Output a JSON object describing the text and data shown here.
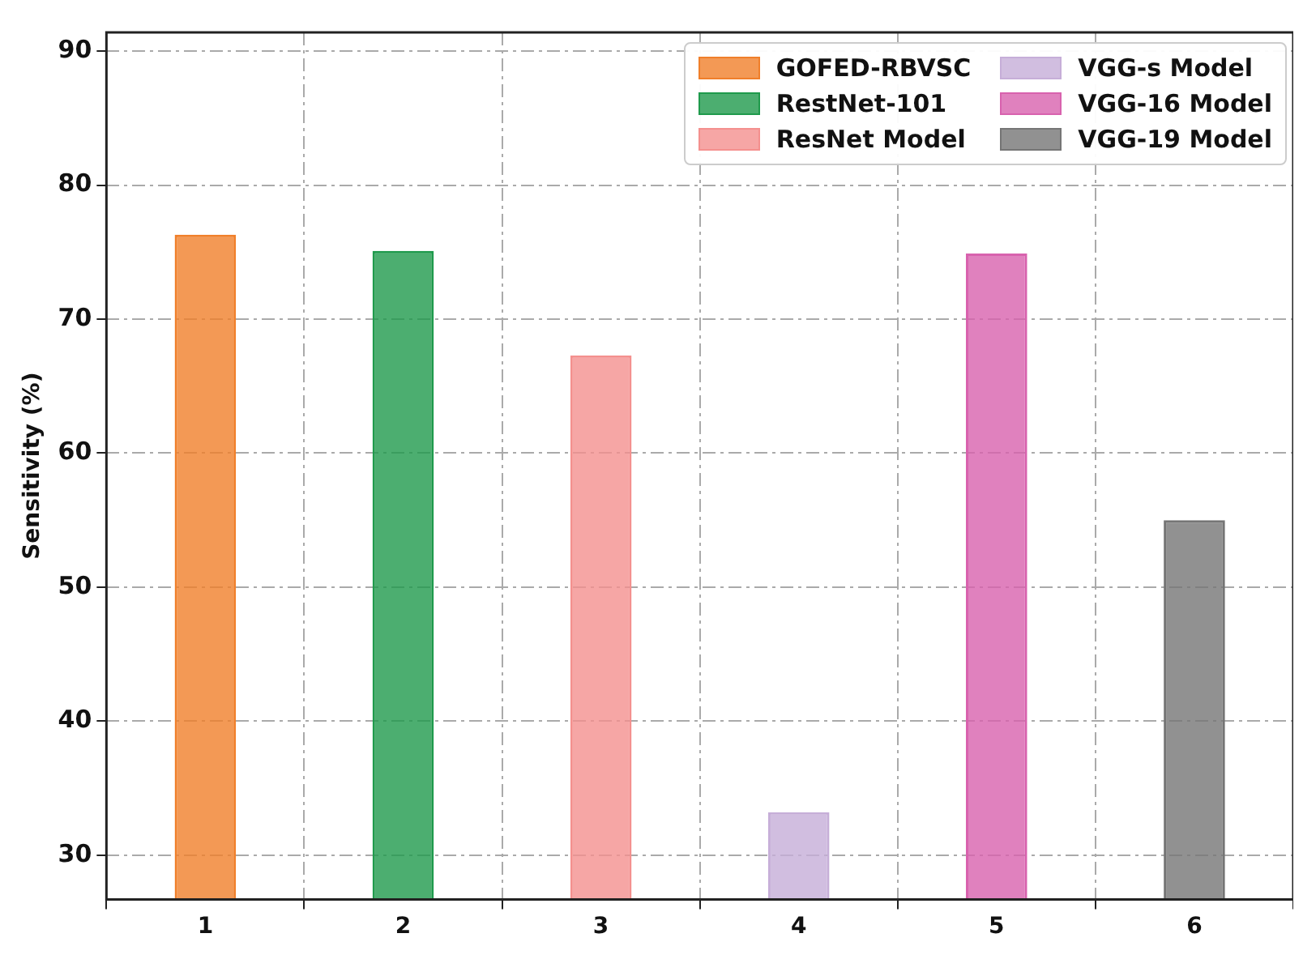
{
  "chart_data": {
    "type": "bar",
    "ylabel": "Sensitivity (%)",
    "categories": [
      "1",
      "2",
      "3",
      "4",
      "5",
      "6"
    ],
    "series": [
      {
        "name": "GOFED-RBVSC",
        "color": "#f07f2a",
        "values": [
          76.3,
          null,
          null,
          null,
          null,
          null
        ]
      },
      {
        "name": "RestNet-101",
        "color": "#1f9a4c",
        "values": [
          null,
          75.1,
          null,
          null,
          null,
          null
        ]
      },
      {
        "name": "ResNet Model",
        "color": "#f4908e",
        "values": [
          null,
          null,
          67.3,
          null,
          null,
          null
        ]
      },
      {
        "name": "VGG-s Model",
        "color": "#c6aed8",
        "values": [
          null,
          null,
          null,
          33.2,
          null,
          null
        ]
      },
      {
        "name": "VGG-16 Model",
        "color": "#d862ae",
        "values": [
          null,
          null,
          null,
          null,
          74.9,
          null
        ]
      },
      {
        "name": "VGG-19 Model",
        "color": "#757575",
        "values": [
          null,
          null,
          null,
          null,
          null,
          55.0
        ]
      }
    ],
    "ylim": [
      26.7,
      91.4
    ],
    "yticks": [
      30,
      40,
      50,
      60,
      70,
      80,
      90
    ],
    "grid": true,
    "legend": "top right"
  }
}
